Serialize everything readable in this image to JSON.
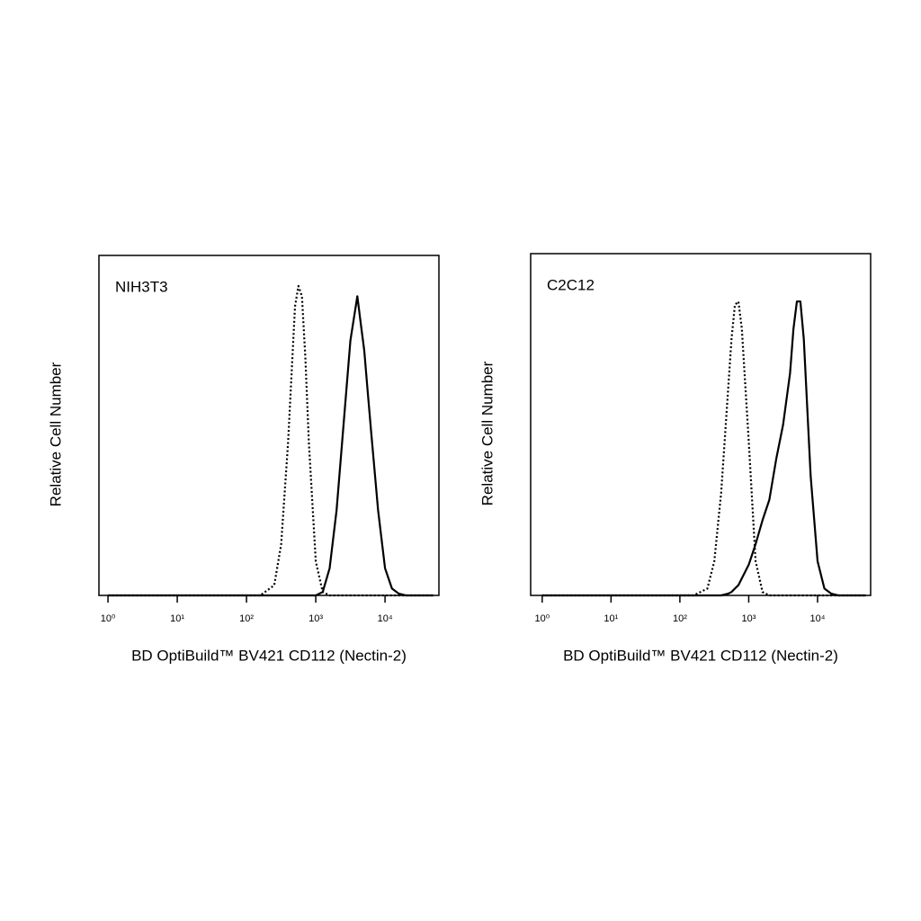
{
  "chart_data": [
    {
      "type": "line",
      "title": "NIH3T3",
      "x_label": "BD OptiBuild™ BV421 CD112 (Nectin-2)",
      "y_label": "Relative Cell Number",
      "x_scale": "log",
      "xlim": [
        0.74,
        60000
      ],
      "ylim": [
        0,
        100
      ],
      "xticks": [
        {
          "value": 1,
          "label": "10⁰"
        },
        {
          "value": 10,
          "label": "10¹"
        },
        {
          "value": 100,
          "label": "10²"
        },
        {
          "value": 1000,
          "label": "10³"
        },
        {
          "value": 10000,
          "label": "10⁴"
        }
      ],
      "x": [
        1,
        3.16,
        10,
        31.6,
        100,
        158,
        251,
        316,
        398,
        501,
        562,
        631,
        708,
        794,
        1000,
        1259,
        1585,
        1995,
        2512,
        3162,
        3981,
        4467,
        5012,
        5623,
        6310,
        7943,
        10000,
        12589,
        15849,
        19953,
        31623,
        50119
      ],
      "series": [
        {
          "color": "#000000",
          "dash": "dotted",
          "values": [
            0,
            0,
            0,
            0,
            0,
            0,
            3,
            15,
            45,
            85,
            91,
            88,
            70,
            45,
            10,
            1,
            0,
            0,
            0,
            0,
            0,
            0,
            0,
            0,
            0,
            0,
            0,
            0,
            0,
            0,
            0,
            0
          ]
        },
        {
          "color": "#000000",
          "dash": "solid",
          "values": [
            0,
            0,
            0,
            0,
            0,
            0,
            0,
            0,
            0,
            0,
            0,
            0,
            0,
            0,
            0,
            1,
            8,
            25,
            50,
            75,
            88,
            80,
            72,
            60,
            48,
            25,
            8,
            2,
            0.5,
            0,
            0,
            0
          ]
        }
      ]
    },
    {
      "type": "line",
      "title": "C2C12",
      "x_label": "BD OptiBuild™ BV421 CD112 (Nectin-2)",
      "y_label": "Relative Cell Number",
      "x_scale": "log",
      "xlim": [
        0.68,
        59000
      ],
      "ylim": [
        0,
        100
      ],
      "xticks": [
        {
          "value": 1,
          "label": "10⁰"
        },
        {
          "value": 10,
          "label": "10¹"
        },
        {
          "value": 100,
          "label": "10²"
        },
        {
          "value": 1000,
          "label": "10³"
        },
        {
          "value": 10000,
          "label": "10⁴"
        }
      ],
      "x": [
        1,
        3.16,
        10,
        31.6,
        100,
        158,
        251,
        316,
        398,
        501,
        562,
        631,
        708,
        794,
        1000,
        1259,
        1585,
        1995,
        2512,
        3162,
        3981,
        4467,
        5012,
        5623,
        6310,
        7943,
        10000,
        12589,
        15849,
        19953,
        31623,
        50119
      ],
      "series": [
        {
          "color": "#000000",
          "dash": "dotted",
          "values": [
            0,
            0,
            0,
            0,
            0,
            0,
            2,
            10,
            30,
            60,
            75,
            85,
            86,
            78,
            45,
            10,
            1,
            0,
            0,
            0,
            0,
            0,
            0,
            0,
            0,
            0,
            0,
            0,
            0,
            0,
            0,
            0
          ]
        },
        {
          "color": "#000000",
          "dash": "solid",
          "values": [
            0,
            0,
            0,
            0,
            0,
            0,
            0,
            0,
            0,
            0.5,
            1,
            2,
            3,
            5,
            9,
            15,
            22,
            28,
            40,
            50,
            65,
            78,
            86,
            86,
            75,
            35,
            10,
            2,
            0.5,
            0,
            0,
            0
          ]
        }
      ]
    }
  ]
}
